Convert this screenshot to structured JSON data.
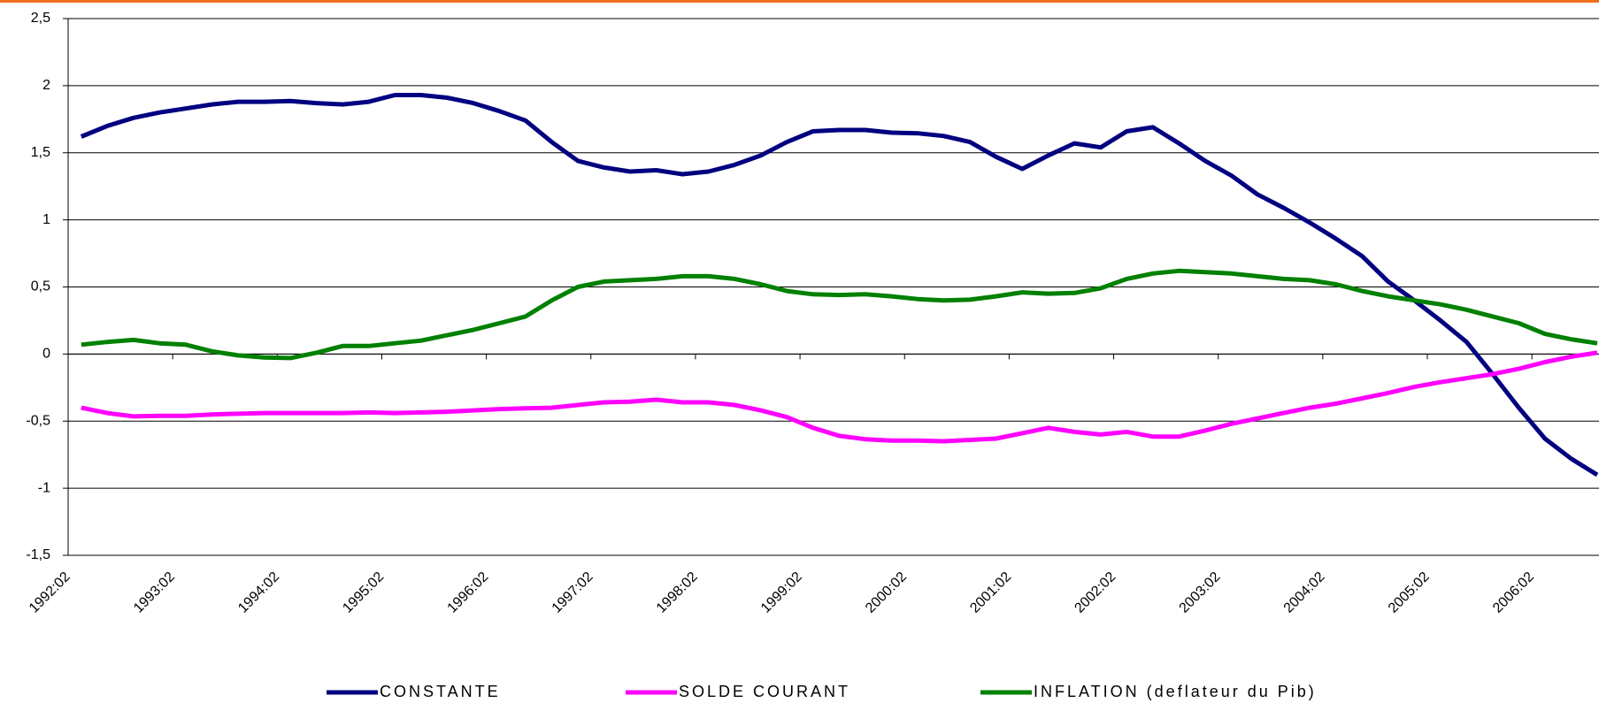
{
  "chart_data": {
    "type": "line",
    "categories": [
      "1992:02",
      null,
      null,
      null,
      "1993:02",
      null,
      null,
      null,
      "1994:02",
      null,
      null,
      null,
      "1995:02",
      null,
      null,
      null,
      "1996:02",
      null,
      null,
      null,
      "1997:02",
      null,
      null,
      null,
      "1998:02",
      null,
      null,
      null,
      "1999:02",
      null,
      null,
      null,
      "2000:02",
      null,
      null,
      null,
      "2001:02",
      null,
      null,
      null,
      "2002:02",
      null,
      null,
      null,
      "2003:02",
      null,
      null,
      null,
      "2004:02",
      null,
      null,
      null,
      "2005:02",
      null,
      null,
      null,
      "2006:02",
      null,
      null
    ],
    "series": [
      {
        "name": "CONSTANTE",
        "color": "#000080",
        "values": [
          1.62,
          1.7,
          1.76,
          1.8,
          1.83,
          1.86,
          1.88,
          1.88,
          1.885,
          1.87,
          1.86,
          1.88,
          1.93,
          1.93,
          1.91,
          1.87,
          1.81,
          1.74,
          1.58,
          1.44,
          1.39,
          1.36,
          1.37,
          1.34,
          1.36,
          1.41,
          1.48,
          1.58,
          1.66,
          1.67,
          1.67,
          1.65,
          1.645,
          1.625,
          1.58,
          1.47,
          1.38,
          1.48,
          1.57,
          1.54,
          1.66,
          1.69,
          1.57,
          1.44,
          1.33,
          1.19,
          1.09,
          0.98,
          0.86,
          0.73,
          0.54,
          0.4,
          0.25,
          0.09,
          -0.15,
          -0.4,
          -0.63,
          -0.78,
          -0.9
        ]
      },
      {
        "name": "SOLDE COURANT",
        "color": "#ff00ff",
        "values": [
          -0.4,
          -0.44,
          -0.465,
          -0.46,
          -0.46,
          -0.45,
          -0.445,
          -0.44,
          -0.44,
          -0.44,
          -0.44,
          -0.435,
          -0.44,
          -0.435,
          -0.43,
          -0.42,
          -0.41,
          -0.405,
          -0.4,
          -0.38,
          -0.36,
          -0.355,
          -0.34,
          -0.36,
          -0.36,
          -0.38,
          -0.42,
          -0.47,
          -0.55,
          -0.61,
          -0.635,
          -0.645,
          -0.645,
          -0.65,
          -0.64,
          -0.63,
          -0.59,
          -0.55,
          -0.58,
          -0.6,
          -0.58,
          -0.615,
          -0.615,
          -0.57,
          -0.52,
          -0.48,
          -0.44,
          -0.4,
          -0.37,
          -0.33,
          -0.29,
          -0.245,
          -0.21,
          -0.18,
          -0.15,
          -0.11,
          -0.06,
          -0.02,
          0.01
        ]
      },
      {
        "name": "INFLATION (deflateur du Pib)",
        "color": "#008000",
        "values": [
          0.07,
          0.09,
          0.105,
          0.08,
          0.07,
          0.02,
          -0.01,
          -0.025,
          -0.03,
          0.01,
          0.06,
          0.06,
          0.08,
          0.1,
          0.14,
          0.18,
          0.23,
          0.28,
          0.4,
          0.5,
          0.54,
          0.55,
          0.56,
          0.58,
          0.58,
          0.56,
          0.52,
          0.47,
          0.445,
          0.44,
          0.445,
          0.43,
          0.41,
          0.4,
          0.405,
          0.43,
          0.46,
          0.45,
          0.455,
          0.49,
          0.56,
          0.6,
          0.62,
          0.61,
          0.6,
          0.58,
          0.56,
          0.55,
          0.52,
          0.47,
          0.43,
          0.4,
          0.37,
          0.33,
          0.28,
          0.23,
          0.15,
          0.11,
          0.08
        ]
      }
    ],
    "ylim": [
      -1.5,
      2.5
    ],
    "yticks": [
      {
        "value": -1.5,
        "label": "-1,5"
      },
      -1,
      {
        "value": -0.5,
        "label": "-0,5"
      },
      0,
      {
        "value": 0.5,
        "label": "0,5"
      },
      1,
      {
        "value": 1.5,
        "label": "1,5"
      },
      2,
      {
        "value": 2.5,
        "label": "2,5"
      }
    ],
    "grid": true,
    "legend": "bottom"
  }
}
